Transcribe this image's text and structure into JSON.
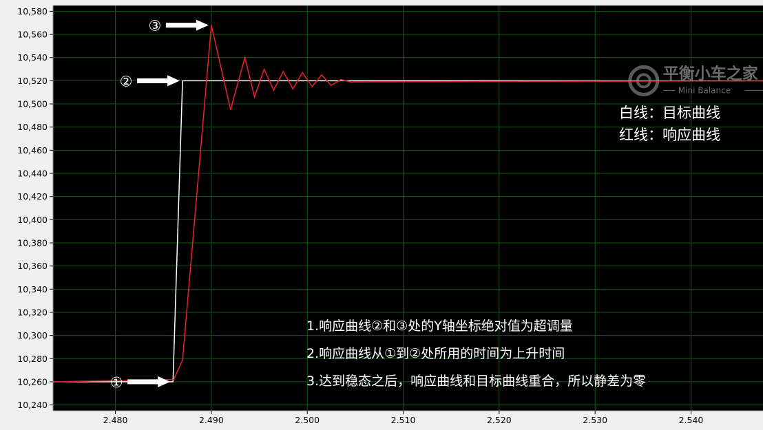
{
  "chart_data": {
    "type": "line",
    "xlim": [
      2.4735,
      2.5475
    ],
    "ylim": [
      10235,
      10585
    ],
    "x_ticks": [
      2.48,
      2.49,
      2.5,
      2.51,
      2.52,
      2.53,
      2.54
    ],
    "x_tick_labels": [
      "2.480",
      "2.490",
      "2.500",
      "2.510",
      "2.520",
      "2.530",
      "2.540"
    ],
    "y_ticks": [
      10240,
      10260,
      10280,
      10300,
      10320,
      10340,
      10360,
      10380,
      10400,
      10420,
      10440,
      10460,
      10480,
      10500,
      10520,
      10540,
      10560,
      10580
    ],
    "y_tick_labels": [
      "10,240",
      "10,260",
      "10,280",
      "10,300",
      "10,320",
      "10,340",
      "10,360",
      "10,380",
      "10,400",
      "10,420",
      "10,440",
      "10,460",
      "10,480",
      "10,500",
      "10,520",
      "10,540",
      "10,560",
      "10,580"
    ],
    "grid": true,
    "series": [
      {
        "color": "#ffffff",
        "x": [
          2.4735,
          2.486,
          2.487,
          2.5475
        ],
        "y": [
          10260,
          10260,
          10520,
          10520
        ]
      },
      {
        "color": "#e0202a",
        "x": [
          2.4735,
          2.4861,
          2.487,
          2.49,
          2.492,
          2.4935,
          2.4945,
          2.4955,
          2.4965,
          2.4975,
          2.4985,
          2.4995,
          2.5005,
          2.5015,
          2.5025,
          2.5035,
          2.5045,
          2.5475
        ],
        "y": [
          10260,
          10262,
          10279,
          10568,
          10495,
          10540,
          10506,
          10530,
          10512,
          10528,
          10513,
          10527,
          10515,
          10525,
          10516,
          10521,
          10519,
          10520
        ]
      }
    ],
    "markers": [
      {
        "symbol": "①",
        "x": 2.486,
        "y": 10260
      },
      {
        "symbol": "②",
        "x": 2.487,
        "y": 10520
      },
      {
        "symbol": "③",
        "x": 2.49,
        "y": 10568
      }
    ],
    "legend_lines": [
      "白线：目标曲线",
      "红线：响应曲线"
    ],
    "notes": [
      "1.响应曲线②和③处的Y轴坐标绝对值为超调量",
      "2.响应曲线从①到②处所用的时间为上升时间",
      "3.达到稳态之后，响应曲线和目标曲线重合，所以静差为零"
    ],
    "watermark": {
      "title": "平衡小车之家",
      "subtitle": "Mini Balance"
    },
    "colors": {
      "plot_bg": "#000000",
      "grid": "#0f5a14",
      "frame_bg": "#f0f0f0",
      "tick_text": "#000000"
    }
  }
}
